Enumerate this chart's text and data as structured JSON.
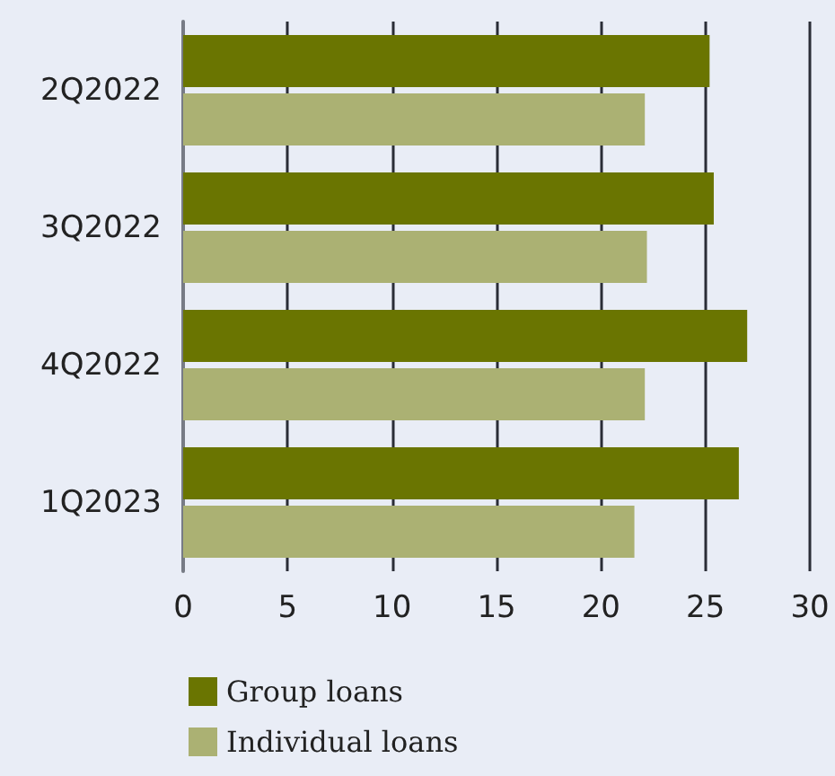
{
  "chart_data": {
    "type": "bar",
    "orientation": "horizontal",
    "categories": [
      "2Q2022",
      "3Q2022",
      "4Q2022",
      "1Q2023"
    ],
    "series": [
      {
        "name": "Group loans",
        "color": "#6a7501",
        "values": [
          25.2,
          25.4,
          27.0,
          26.6
        ]
      },
      {
        "name": "Individual loans",
        "color": "#abb173",
        "values": [
          22.1,
          22.2,
          22.1,
          21.6
        ]
      }
    ],
    "xlim": [
      0,
      30
    ],
    "xticks": [
      0,
      5,
      10,
      15,
      20,
      25,
      30
    ],
    "grid": "x",
    "legend": "bottom"
  }
}
